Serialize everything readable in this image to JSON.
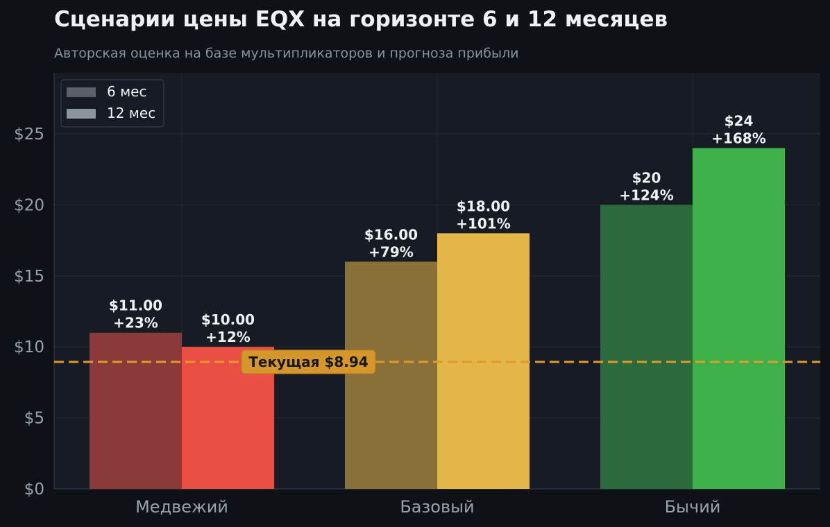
{
  "chart_data": {
    "type": "bar",
    "title": "Сценарии цены EQX на горизонте 6 и 12 месяцев",
    "subtitle": "Авторская оценка на базе мультипликаторов и прогноза прибыли",
    "categories": [
      "Медвежий",
      "Базовый",
      "Бычий"
    ],
    "series": [
      {
        "name": "6 мес",
        "values": [
          11,
          16,
          20
        ],
        "labels": [
          "$11.00",
          "$16.00",
          "$20"
        ],
        "pct_labels": [
          "+23%",
          "+79%",
          "+124%"
        ],
        "colors": [
          "#8b3a3a",
          "#877139",
          "#2a6a3b"
        ],
        "legend_color": "#5b6068"
      },
      {
        "name": "12 мес",
        "values": [
          10,
          18,
          24
        ],
        "labels": [
          "$10.00",
          "$18.00",
          "$24"
        ],
        "pct_labels": [
          "+12%",
          "+101%",
          "+168%"
        ],
        "colors": [
          "#ea4e44",
          "#e4b549",
          "#3db04c"
        ],
        "legend_color": "#8c949c"
      }
    ],
    "y_ticks": [
      0,
      5,
      10,
      15,
      20,
      25
    ],
    "y_tick_labels": [
      "$0",
      "$5",
      "$10",
      "$15",
      "$20",
      "$25"
    ],
    "ylim": [
      0,
      29.3
    ],
    "reference_line": {
      "value": 8.94,
      "label": "Текущая $8.94",
      "color": "#e09c26"
    },
    "grid": true,
    "legend_position": "top-left",
    "colors": {
      "background": "#0e1216",
      "plot_background": "#171b23",
      "grid": "#262b33",
      "text": "#eef1f5",
      "muted_text": "#9aa1a9"
    }
  }
}
